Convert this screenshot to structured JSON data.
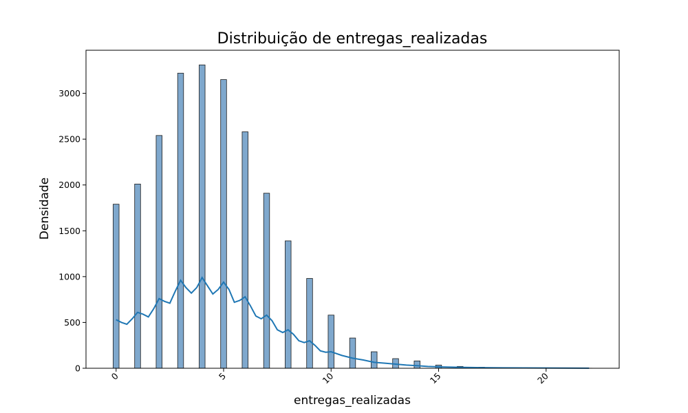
{
  "chart_data": {
    "type": "bar",
    "title": "Distribuição de entregas_realizadas",
    "xlabel": "entregas_realizadas",
    "ylabel": "Densidade",
    "xlim": [
      -1.4,
      23.4
    ],
    "ylim": [
      0,
      3470
    ],
    "x_ticks": [
      0,
      5,
      10,
      15,
      20
    ],
    "x_tick_labels": [
      "0",
      "5",
      "10",
      "15",
      "20"
    ],
    "y_ticks": [
      0,
      500,
      1000,
      1500,
      2000,
      2500,
      3000
    ],
    "y_tick_labels": [
      "0",
      "500",
      "1000",
      "1500",
      "2000",
      "2500",
      "3000"
    ],
    "x_tick_rotation": -45,
    "grid": false,
    "legend": false,
    "bar_width": 0.275,
    "bars": [
      {
        "x": 0,
        "value": 1790
      },
      {
        "x": 1,
        "value": 2010
      },
      {
        "x": 2,
        "value": 2540
      },
      {
        "x": 3,
        "value": 3220
      },
      {
        "x": 4,
        "value": 3310
      },
      {
        "x": 5,
        "value": 3150
      },
      {
        "x": 6,
        "value": 2580
      },
      {
        "x": 7,
        "value": 1910
      },
      {
        "x": 8,
        "value": 1390
      },
      {
        "x": 9,
        "value": 980
      },
      {
        "x": 10,
        "value": 580
      },
      {
        "x": 11,
        "value": 330
      },
      {
        "x": 12,
        "value": 180
      },
      {
        "x": 13,
        "value": 105
      },
      {
        "x": 14,
        "value": 80
      },
      {
        "x": 15,
        "value": 35
      },
      {
        "x": 16,
        "value": 20
      },
      {
        "x": 17,
        "value": 12
      },
      {
        "x": 18,
        "value": 8
      },
      {
        "x": 19,
        "value": 4
      },
      {
        "x": 20,
        "value": 3
      },
      {
        "x": 21,
        "value": 2
      },
      {
        "x": 22,
        "value": 1
      }
    ],
    "kde_x": [
      0,
      0.25,
      0.5,
      0.75,
      1,
      1.25,
      1.5,
      1.75,
      2,
      2.25,
      2.5,
      2.75,
      3,
      3.25,
      3.5,
      3.75,
      4,
      4.25,
      4.5,
      4.75,
      5,
      5.25,
      5.5,
      5.75,
      6,
      6.25,
      6.5,
      6.75,
      7,
      7.25,
      7.5,
      7.75,
      8,
      8.25,
      8.5,
      8.75,
      9,
      9.25,
      9.5,
      9.75,
      10,
      10.5,
      11,
      11.5,
      12,
      12.5,
      13,
      13.5,
      14,
      14.5,
      15,
      16,
      17,
      18,
      19,
      20,
      21,
      22
    ],
    "kde_y": [
      530,
      500,
      480,
      540,
      610,
      590,
      560,
      650,
      760,
      730,
      710,
      840,
      960,
      880,
      820,
      880,
      990,
      900,
      810,
      860,
      940,
      860,
      720,
      740,
      780,
      680,
      570,
      540,
      580,
      520,
      420,
      390,
      420,
      370,
      300,
      280,
      300,
      250,
      190,
      175,
      180,
      140,
      110,
      90,
      65,
      55,
      45,
      35,
      28,
      20,
      15,
      10,
      7,
      5,
      4,
      3,
      2,
      1
    ]
  }
}
